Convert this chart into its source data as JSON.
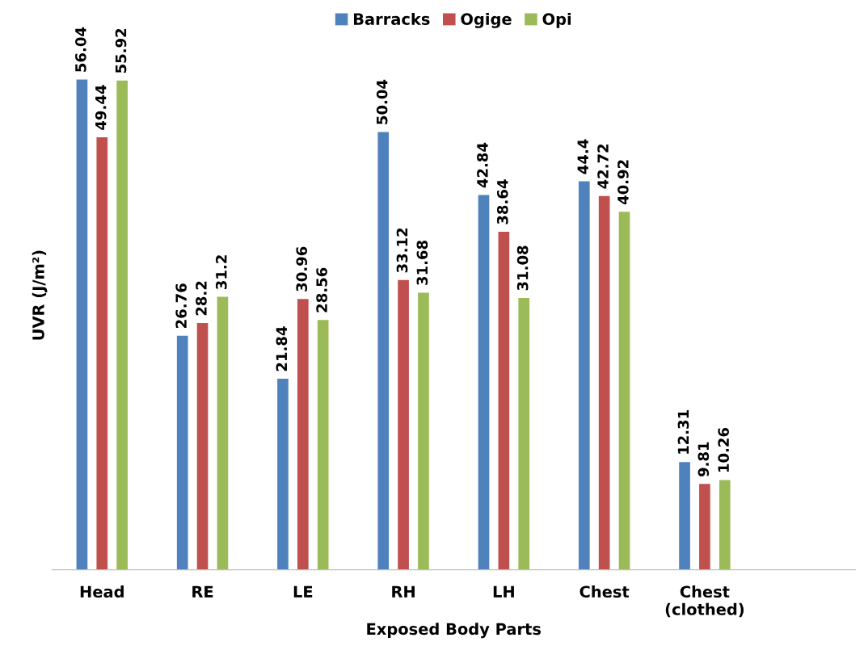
{
  "chart_data": {
    "type": "bar",
    "xlabel": "Exposed Body Parts",
    "ylabel": "UVR (J/m²)",
    "categories": [
      "Head",
      "RE",
      "LE",
      "RH",
      "LH",
      "Chest",
      "Chest\n(clothed)",
      null
    ],
    "series": [
      {
        "name": "Barracks",
        "color": "#4f81bd",
        "values": [
          56.04,
          26.76,
          21.84,
          50.04,
          42.84,
          44.4,
          12.31,
          null
        ]
      },
      {
        "name": "Ogige",
        "color": "#c0504d",
        "values": [
          49.44,
          28.2,
          30.96,
          33.12,
          38.64,
          42.72,
          9.81,
          null
        ]
      },
      {
        "name": "Opi",
        "color": "#9bbb59",
        "values": [
          55.92,
          31.2,
          28.56,
          31.68,
          31.08,
          40.92,
          10.26,
          null
        ]
      }
    ],
    "data_labels": true,
    "legend": "top",
    "grid": false
  }
}
